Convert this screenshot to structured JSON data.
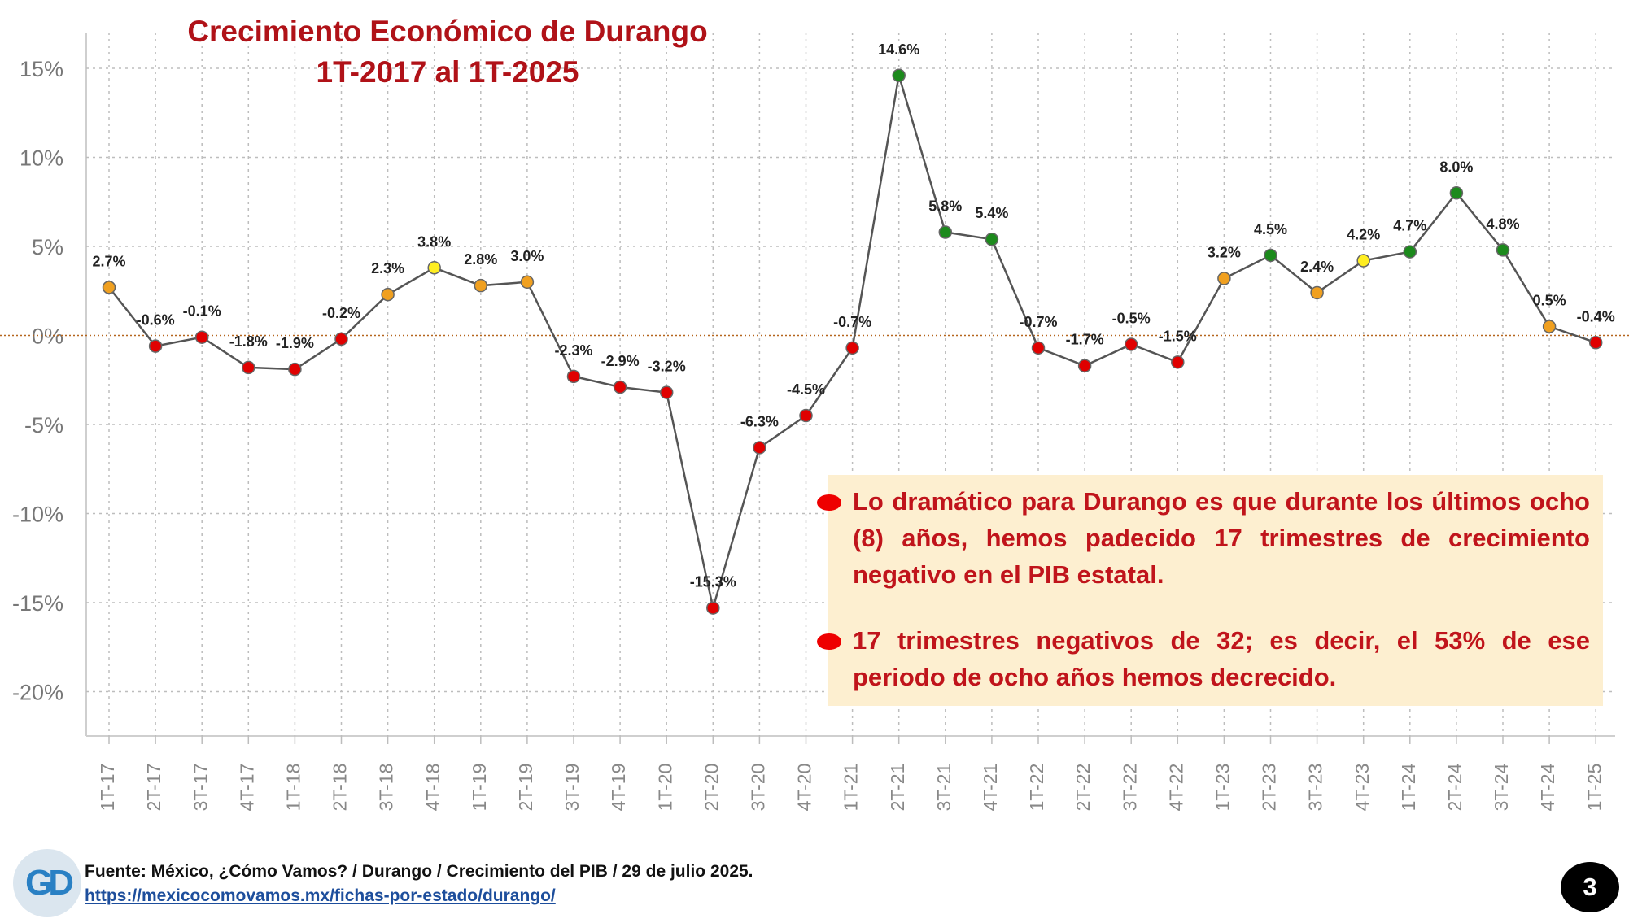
{
  "title_line1": "Crecimiento Económico de Durango",
  "title_line2": "1T-2017 al 1T-2025",
  "chart_data": {
    "type": "line",
    "ylim": [
      -22,
      17
    ],
    "yticks": [
      15,
      10,
      5,
      0,
      -5,
      -10,
      -15,
      -20
    ],
    "ytick_labels": [
      "15%",
      "10%",
      "5%",
      "0%",
      "-5%",
      "-10%",
      "-15%",
      "-20%"
    ],
    "grid": true,
    "zero_line_color": "#b5651d",
    "categories": [
      "1T-17",
      "2T-17",
      "3T-17",
      "4T-17",
      "1T-18",
      "2T-18",
      "3T-18",
      "4T-18",
      "1T-19",
      "2T-19",
      "3T-19",
      "4T-19",
      "1T-20",
      "2T-20",
      "3T-20",
      "4T-20",
      "1T-21",
      "2T-21",
      "3T-21",
      "4T-21",
      "1T-22",
      "2T-22",
      "3T-22",
      "4T-22",
      "1T-23",
      "2T-23",
      "3T-23",
      "4T-23",
      "1T-24",
      "2T-24",
      "3T-24",
      "4T-24",
      "1T-25"
    ],
    "values": [
      2.7,
      -0.6,
      -0.1,
      -1.8,
      -1.9,
      -0.2,
      2.3,
      3.8,
      2.8,
      3.0,
      -2.3,
      -2.9,
      -3.2,
      -15.3,
      -6.3,
      -4.5,
      -0.7,
      14.6,
      5.8,
      5.4,
      -0.7,
      -1.7,
      -0.5,
      -1.5,
      3.2,
      4.5,
      2.4,
      4.2,
      4.7,
      8.0,
      4.8,
      0.5,
      -0.4
    ],
    "value_labels": [
      "2.7%",
      "-0.6%",
      "-0.1%",
      "-1.8%",
      "-1.9%",
      "-0.2%",
      "2.3%",
      "3.8%",
      "2.8%",
      "3.0%",
      "-2.3%",
      "-2.9%",
      "-3.2%",
      "-15.3%",
      "-6.3%",
      "-4.5%",
      "-0.7%",
      "14.6%",
      "5.8%",
      "5.4%",
      "-0.7%",
      "-1.7%",
      "-0.5%",
      "-1.5%",
      "3.2%",
      "4.5%",
      "2.4%",
      "4.2%",
      "4.7%",
      "8.0%",
      "4.8%",
      "0.5%",
      "-0.4%"
    ],
    "point_colors": [
      "#f0a020",
      "#e00000",
      "#e00000",
      "#e00000",
      "#e00000",
      "#e00000",
      "#f0a020",
      "#ffee22",
      "#f0a020",
      "#f0a020",
      "#e00000",
      "#e00000",
      "#e00000",
      "#e00000",
      "#e00000",
      "#e00000",
      "#e00000",
      "#1c8a1c",
      "#1c8a1c",
      "#1c8a1c",
      "#e00000",
      "#e00000",
      "#e00000",
      "#e00000",
      "#f0a020",
      "#1c8a1c",
      "#f0a020",
      "#ffee22",
      "#1c8a1c",
      "#1c8a1c",
      "#1c8a1c",
      "#f0a020",
      "#e00000"
    ],
    "line_color": "#555555"
  },
  "callout": {
    "bullet1": "Lo dramático para Durango es que durante los últimos ocho (8) años, hemos padecido 17 trimestres de crecimiento negativo en el PIB estatal.",
    "bullet2": "17 trimestres negativos de 32; es decir, el 53% de ese periodo de ocho años hemos decrecido."
  },
  "footer": {
    "source": "Fuente: México, ¿Cómo Vamos? / Durango / Crecimiento del PIB / 29 de julio 2025.",
    "url": "https://mexicocomovamos.mx/fichas-por-estado/durango/"
  },
  "logo_text": "GD",
  "page_number": "3"
}
